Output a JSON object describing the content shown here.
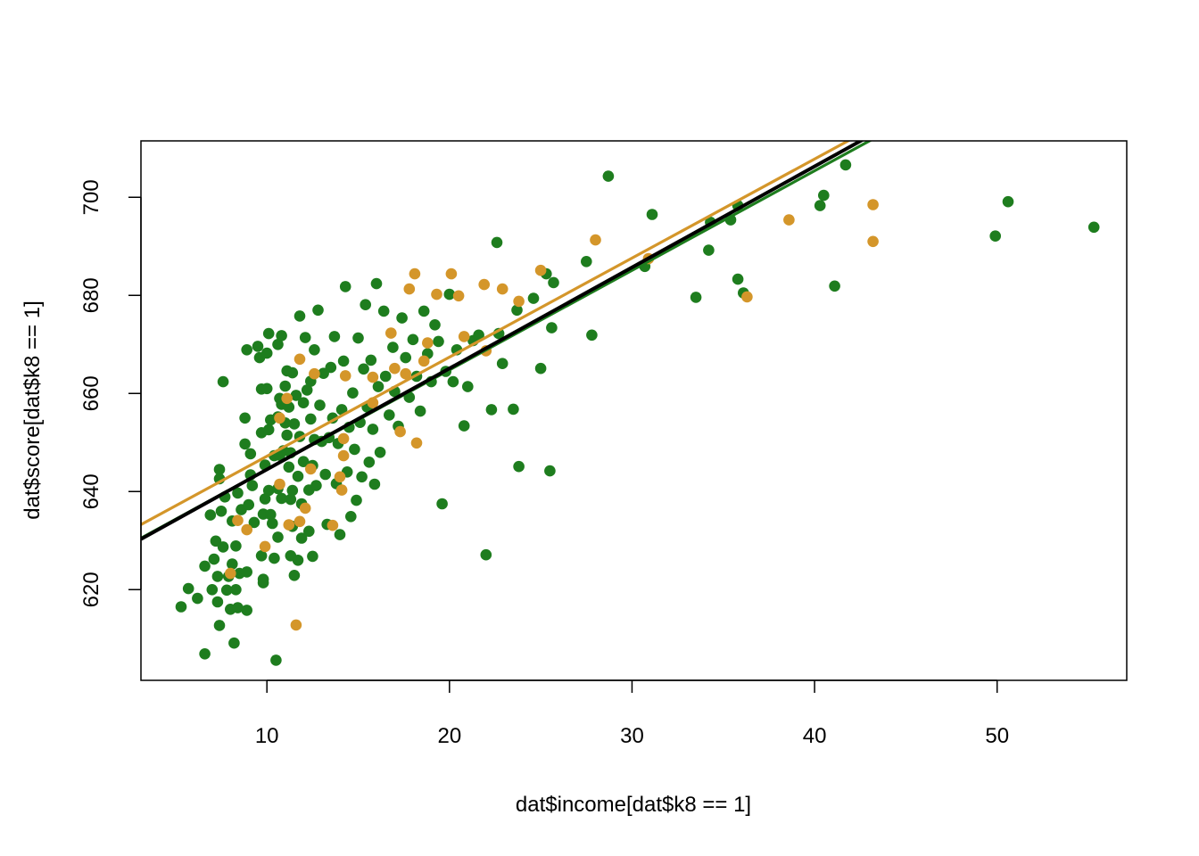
{
  "chart_data": {
    "type": "scatter",
    "title": "",
    "xlabel": "dat$income[dat$k8 == 1]",
    "ylabel": "dat$score[dat$k8 == 1]",
    "xlim": [
      3.1,
      57.1
    ],
    "ylim": [
      601.5,
      711.5
    ],
    "x_ticks": [
      10,
      20,
      30,
      40,
      50
    ],
    "y_ticks": [
      620,
      640,
      660,
      680,
      700
    ],
    "grid": false,
    "legend": "none",
    "colors": {
      "green": "#1e7d1e",
      "gold": "#d4962a",
      "black": "#000000"
    },
    "series": [
      {
        "color": "green",
        "points": [
          [
            5.3,
            616.5
          ],
          [
            5.7,
            620.2
          ],
          [
            6.2,
            618.2
          ],
          [
            6.6,
            606.9
          ],
          [
            6.6,
            624.8
          ],
          [
            6.9,
            635.2
          ],
          [
            7.0,
            620.0
          ],
          [
            7.1,
            626.2
          ],
          [
            7.2,
            629.9
          ],
          [
            7.3,
            617.5
          ],
          [
            7.3,
            622.7
          ],
          [
            7.4,
            644.5
          ],
          [
            7.4,
            642.6
          ],
          [
            7.4,
            612.7
          ],
          [
            7.5,
            636.0
          ],
          [
            7.6,
            662.4
          ],
          [
            7.6,
            628.7
          ],
          [
            7.7,
            638.9
          ],
          [
            7.8,
            619.9
          ],
          [
            7.9,
            622.7
          ],
          [
            8.0,
            616.0
          ],
          [
            8.1,
            625.2
          ],
          [
            8.1,
            634.0
          ],
          [
            8.2,
            609.1
          ],
          [
            8.3,
            620.0
          ],
          [
            8.3,
            628.9
          ],
          [
            8.4,
            639.7
          ],
          [
            8.4,
            616.3
          ],
          [
            8.5,
            623.3
          ],
          [
            8.6,
            636.3
          ],
          [
            8.8,
            655.0
          ],
          [
            8.8,
            649.7
          ],
          [
            8.9,
            623.6
          ],
          [
            8.9,
            615.8
          ],
          [
            8.9,
            668.9
          ],
          [
            9.0,
            637.3
          ],
          [
            9.1,
            643.4
          ],
          [
            9.1,
            647.7
          ],
          [
            9.2,
            641.2
          ],
          [
            9.3,
            633.7
          ],
          [
            9.5,
            669.6
          ],
          [
            9.6,
            667.3
          ],
          [
            9.7,
            626.9
          ],
          [
            9.7,
            652.0
          ],
          [
            9.7,
            660.9
          ],
          [
            9.8,
            635.4
          ],
          [
            9.8,
            621.4
          ],
          [
            9.8,
            622.1
          ],
          [
            9.9,
            645.4
          ],
          [
            9.9,
            638.5
          ],
          [
            10.0,
            668.2
          ],
          [
            10.0,
            661.0
          ],
          [
            10.1,
            652.6
          ],
          [
            10.1,
            672.2
          ],
          [
            10.1,
            640.2
          ],
          [
            10.2,
            635.3
          ],
          [
            10.2,
            654.6
          ],
          [
            10.3,
            633.5
          ],
          [
            10.4,
            647.3
          ],
          [
            10.4,
            626.4
          ],
          [
            10.5,
            605.6
          ],
          [
            10.6,
            655.2
          ],
          [
            10.6,
            640.6
          ],
          [
            10.6,
            630.7
          ],
          [
            10.6,
            670.0
          ],
          [
            10.7,
            647.4
          ],
          [
            10.7,
            659.0
          ],
          [
            10.8,
            671.8
          ],
          [
            10.8,
            657.8
          ],
          [
            10.8,
            638.6
          ],
          [
            10.9,
            648.3
          ],
          [
            11.0,
            661.5
          ],
          [
            11.0,
            654.0
          ],
          [
            11.1,
            664.6
          ],
          [
            11.1,
            651.5
          ],
          [
            11.2,
            645.0
          ],
          [
            11.2,
            657.2
          ],
          [
            11.3,
            638.4
          ],
          [
            11.3,
            626.9
          ],
          [
            11.3,
            647.9
          ],
          [
            11.4,
            640.2
          ],
          [
            11.4,
            632.9
          ],
          [
            11.4,
            664.2
          ],
          [
            11.5,
            653.8
          ],
          [
            11.5,
            622.9
          ],
          [
            11.6,
            659.6
          ],
          [
            11.7,
            643.1
          ],
          [
            11.7,
            626.0
          ],
          [
            11.8,
            675.8
          ],
          [
            11.8,
            651.2
          ],
          [
            11.9,
            630.5
          ],
          [
            11.9,
            637.5
          ],
          [
            12.0,
            658.1
          ],
          [
            12.0,
            646.1
          ],
          [
            12.1,
            671.4
          ],
          [
            12.2,
            660.7
          ],
          [
            12.3,
            640.3
          ],
          [
            12.3,
            631.9
          ],
          [
            12.4,
            654.8
          ],
          [
            12.4,
            662.5
          ],
          [
            12.5,
            626.8
          ],
          [
            12.5,
            645.3
          ],
          [
            12.6,
            668.9
          ],
          [
            12.6,
            650.6
          ],
          [
            12.7,
            641.2
          ],
          [
            12.8,
            677.0
          ],
          [
            12.9,
            657.6
          ],
          [
            13.0,
            650.2
          ],
          [
            13.1,
            664.1
          ],
          [
            13.2,
            643.5
          ],
          [
            13.3,
            633.3
          ],
          [
            13.4,
            651.0
          ],
          [
            13.5,
            665.3
          ],
          [
            13.6,
            655.0
          ],
          [
            13.7,
            671.6
          ],
          [
            13.8,
            641.6
          ],
          [
            13.9,
            649.8
          ],
          [
            14.0,
            631.2
          ],
          [
            14.1,
            656.7
          ],
          [
            14.2,
            666.6
          ],
          [
            14.3,
            681.8
          ],
          [
            14.4,
            644.0
          ],
          [
            14.5,
            653.1
          ],
          [
            14.6,
            634.9
          ],
          [
            14.7,
            660.1
          ],
          [
            14.8,
            648.6
          ],
          [
            14.9,
            638.2
          ],
          [
            15.0,
            671.3
          ],
          [
            15.1,
            654.1
          ],
          [
            15.2,
            643.0
          ],
          [
            15.3,
            665.0
          ],
          [
            15.4,
            678.1
          ],
          [
            15.5,
            657.2
          ],
          [
            15.6,
            646.0
          ],
          [
            15.7,
            666.8
          ],
          [
            15.8,
            652.7
          ],
          [
            15.9,
            641.5
          ],
          [
            16.0,
            682.4
          ],
          [
            16.1,
            661.4
          ],
          [
            16.2,
            648.0
          ],
          [
            16.4,
            676.8
          ],
          [
            16.5,
            663.5
          ],
          [
            16.7,
            655.6
          ],
          [
            16.9,
            669.4
          ],
          [
            17.0,
            660.4
          ],
          [
            17.2,
            653.3
          ],
          [
            17.4,
            675.4
          ],
          [
            17.6,
            667.3
          ],
          [
            17.8,
            659.2
          ],
          [
            18.0,
            671.0
          ],
          [
            18.2,
            663.5
          ],
          [
            18.4,
            656.4
          ],
          [
            18.6,
            676.8
          ],
          [
            18.8,
            668.1
          ],
          [
            19.0,
            662.4
          ],
          [
            19.2,
            674.0
          ],
          [
            19.4,
            670.6
          ],
          [
            19.6,
            637.5
          ],
          [
            19.8,
            664.5
          ],
          [
            20.0,
            680.2
          ],
          [
            20.2,
            662.4
          ],
          [
            20.4,
            668.9
          ],
          [
            20.8,
            653.4
          ],
          [
            21.0,
            661.4
          ],
          [
            21.3,
            670.8
          ],
          [
            21.6,
            671.9
          ],
          [
            22.0,
            627.1
          ],
          [
            22.3,
            656.7
          ],
          [
            22.6,
            690.8
          ],
          [
            22.7,
            672.2
          ],
          [
            22.9,
            666.1
          ],
          [
            23.5,
            656.8
          ],
          [
            23.7,
            677.0
          ],
          [
            23.8,
            645.1
          ],
          [
            24.6,
            679.4
          ],
          [
            25.0,
            665.1
          ],
          [
            25.3,
            684.4
          ],
          [
            25.5,
            644.2
          ],
          [
            25.7,
            682.6
          ],
          [
            25.6,
            673.4
          ],
          [
            27.5,
            686.9
          ],
          [
            27.8,
            671.9
          ],
          [
            28.7,
            704.3
          ],
          [
            30.7,
            685.9
          ],
          [
            31.1,
            696.5
          ],
          [
            33.5,
            679.6
          ],
          [
            34.2,
            689.2
          ],
          [
            34.3,
            694.9
          ],
          [
            35.4,
            695.4
          ],
          [
            35.8,
            698.3
          ],
          [
            35.8,
            683.3
          ],
          [
            36.1,
            680.5
          ],
          [
            40.3,
            698.3
          ],
          [
            40.5,
            700.4
          ],
          [
            41.1,
            681.9
          ],
          [
            41.7,
            706.6
          ],
          [
            49.9,
            692.1
          ],
          [
            50.6,
            699.1
          ],
          [
            55.3,
            693.9
          ]
        ]
      },
      {
        "color": "gold",
        "points": [
          [
            8.0,
            623.3
          ],
          [
            8.4,
            634.1
          ],
          [
            8.9,
            632.2
          ],
          [
            9.9,
            628.8
          ],
          [
            10.7,
            641.5
          ],
          [
            10.7,
            655.0
          ],
          [
            11.1,
            659.0
          ],
          [
            11.2,
            633.2
          ],
          [
            11.6,
            612.8
          ],
          [
            11.8,
            667.0
          ],
          [
            11.8,
            633.9
          ],
          [
            12.1,
            636.6
          ],
          [
            12.4,
            644.6
          ],
          [
            12.6,
            664.0
          ],
          [
            13.6,
            633.1
          ],
          [
            14.0,
            643.0
          ],
          [
            14.1,
            640.3
          ],
          [
            14.2,
            647.3
          ],
          [
            14.2,
            650.8
          ],
          [
            14.3,
            663.6
          ],
          [
            15.8,
            658.1
          ],
          [
            15.8,
            663.3
          ],
          [
            16.8,
            672.3
          ],
          [
            17.0,
            665.1
          ],
          [
            17.3,
            652.2
          ],
          [
            17.6,
            664.0
          ],
          [
            17.8,
            681.3
          ],
          [
            18.1,
            684.4
          ],
          [
            18.2,
            649.9
          ],
          [
            18.6,
            666.6
          ],
          [
            18.8,
            670.3
          ],
          [
            19.3,
            680.2
          ],
          [
            20.1,
            684.4
          ],
          [
            20.5,
            679.9
          ],
          [
            20.8,
            671.6
          ],
          [
            21.9,
            682.2
          ],
          [
            22.0,
            668.7
          ],
          [
            22.9,
            681.3
          ],
          [
            23.8,
            678.8
          ],
          [
            25.0,
            685.1
          ],
          [
            28.0,
            691.3
          ],
          [
            30.9,
            687.5
          ],
          [
            36.3,
            679.7
          ],
          [
            38.6,
            695.4
          ],
          [
            43.2,
            698.5
          ],
          [
            43.2,
            691.0
          ]
        ]
      }
    ],
    "lines": [
      {
        "color": "black",
        "intercept": 623.9,
        "slope": 2.06
      },
      {
        "color": "green",
        "intercept": 624.2,
        "slope": 2.03
      },
      {
        "color": "gold",
        "intercept": 627.0,
        "slope": 2.02
      }
    ]
  }
}
